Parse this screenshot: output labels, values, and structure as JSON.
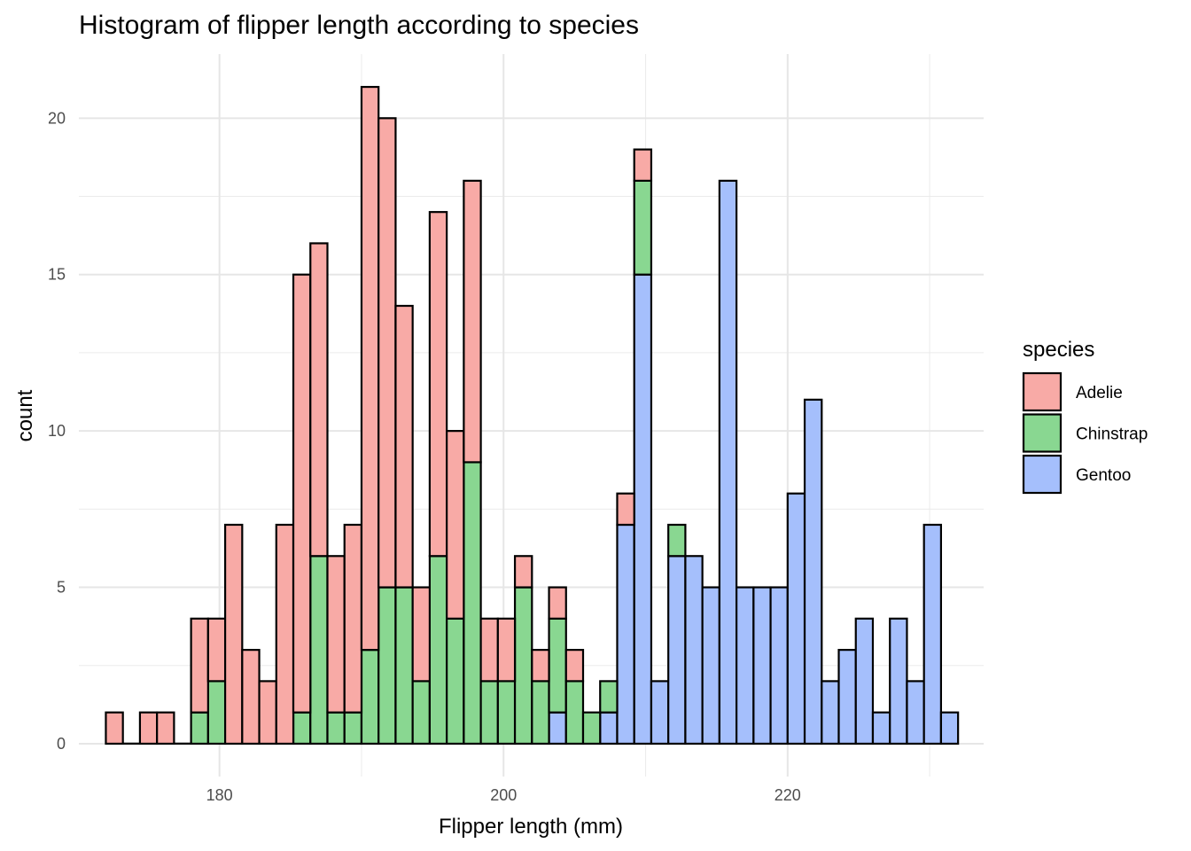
{
  "chart_data": {
    "type": "bar",
    "stacked": true,
    "title": "Histogram of flipper length according to species",
    "xlabel": "Flipper length (mm)",
    "ylabel": "count",
    "x_ticks": [
      180,
      200,
      220
    ],
    "y_ticks": [
      0,
      5,
      10,
      15,
      20
    ],
    "xlim": [
      170.1,
      233.8
    ],
    "ylim": [
      -1.05,
      22.05
    ],
    "grid": true,
    "legend_position": "right",
    "legend_title": "species",
    "bin_width": 1.2,
    "x": [
      172.6,
      173.8,
      175.0,
      176.2,
      177.4,
      178.6,
      179.8,
      181.0,
      182.2,
      183.4,
      184.6,
      185.8,
      187.0,
      188.2,
      189.4,
      190.6,
      191.8,
      193.0,
      194.2,
      195.4,
      196.6,
      197.8,
      199.0,
      200.2,
      201.4,
      202.6,
      203.8,
      205.0,
      206.2,
      207.4,
      208.6,
      209.8,
      211.0,
      212.2,
      213.4,
      214.6,
      215.8,
      217.0,
      218.2,
      219.4,
      220.6,
      221.8,
      223.0,
      224.2,
      225.4,
      226.6,
      227.8,
      229.0,
      230.2,
      231.4
    ],
    "series": [
      {
        "name": "Gentoo",
        "color": "#a5bffc",
        "values": [
          0,
          0,
          0,
          0,
          0,
          0,
          0,
          0,
          0,
          0,
          0,
          0,
          0,
          0,
          0,
          0,
          0,
          0,
          0,
          0,
          0,
          0,
          0,
          0,
          0,
          0,
          1,
          0,
          0,
          1,
          7,
          15,
          2,
          6,
          6,
          5,
          18,
          5,
          5,
          5,
          8,
          11,
          2,
          3,
          4,
          1,
          4,
          2,
          7,
          1
        ]
      },
      {
        "name": "Chinstrap",
        "color": "#89d791",
        "values": [
          0,
          0,
          0,
          0,
          0,
          1,
          2,
          0,
          0,
          0,
          0,
          1,
          6,
          1,
          1,
          3,
          5,
          5,
          2,
          6,
          4,
          9,
          2,
          2,
          5,
          2,
          3,
          2,
          1,
          1,
          0,
          3,
          0,
          1,
          0,
          0,
          0,
          0,
          0,
          0,
          0,
          0,
          0,
          0,
          0,
          0,
          0,
          0,
          0,
          0
        ]
      },
      {
        "name": "Adelie",
        "color": "#f8aaa6",
        "values": [
          1,
          0,
          1,
          1,
          0,
          3,
          2,
          7,
          3,
          2,
          7,
          14,
          10,
          5,
          6,
          18,
          15,
          9,
          3,
          11,
          6,
          9,
          2,
          2,
          1,
          1,
          1,
          1,
          0,
          0,
          1,
          1,
          0,
          0,
          0,
          0,
          0,
          0,
          0,
          0,
          0,
          0,
          0,
          0,
          0,
          0,
          0,
          0,
          0,
          0
        ]
      }
    ],
    "legend_order": [
      "Adelie",
      "Chinstrap",
      "Gentoo"
    ],
    "bar_outline_color": "#000000"
  }
}
